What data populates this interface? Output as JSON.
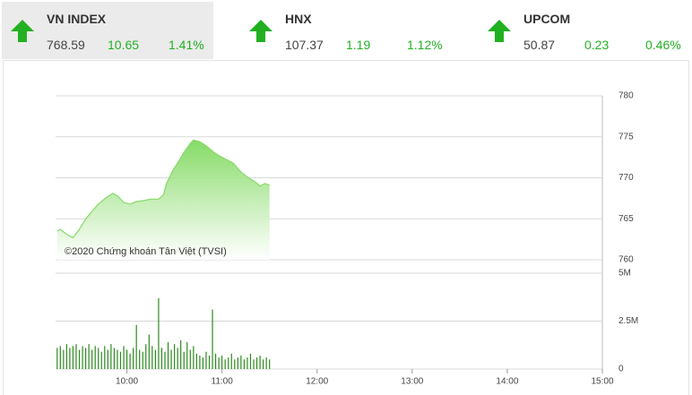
{
  "indices": [
    {
      "name": "VN INDEX",
      "value": "768.59",
      "change": "10.65",
      "percent": "1.41%"
    },
    {
      "name": "HNX",
      "value": "107.37",
      "change": "1.19",
      "percent": "1.12%"
    },
    {
      "name": "UPCOM",
      "value": "50.87",
      "change": "0.23",
      "percent": "0.46%"
    }
  ],
  "chart_data": [
    {
      "type": "area",
      "annotation": "©2020 Chứng khoán Tân Việt (TVSI)",
      "color": "#86d96a",
      "x": [
        "09:16",
        "09:18",
        "09:22",
        "09:26",
        "09:30",
        "09:34",
        "09:38",
        "09:42",
        "09:47",
        "09:51",
        "09:54",
        "09:58",
        "10:02",
        "10:06",
        "10:10",
        "10:15",
        "10:20",
        "10:23",
        "10:25",
        "10:29",
        "10:32",
        "10:36",
        "10:40",
        "10:42",
        "10:46",
        "10:50",
        "10:55",
        "10:59",
        "11:03",
        "11:07",
        "11:12",
        "11:16",
        "11:21",
        "11:24",
        "11:27",
        "11:30"
      ],
      "values": [
        763.5,
        763.7,
        763.1,
        762.7,
        763.7,
        765.0,
        765.9,
        766.8,
        767.6,
        768.1,
        767.8,
        767.0,
        766.8,
        767.1,
        767.2,
        767.4,
        767.4,
        767.9,
        769.3,
        770.9,
        771.8,
        773.1,
        774.2,
        774.6,
        774.4,
        773.9,
        773.1,
        772.6,
        772.2,
        771.8,
        770.7,
        770.1,
        769.5,
        769.0,
        769.3,
        769.1
      ],
      "xlim": [
        "09:15",
        "15:00"
      ],
      "ylim": [
        760,
        780
      ],
      "yticks": [
        760,
        765,
        770,
        775,
        780
      ],
      "grid": true
    },
    {
      "type": "bar",
      "color": "#2d8a1f",
      "x": [
        "09:16",
        "09:18",
        "09:20",
        "09:22",
        "09:24",
        "09:26",
        "09:28",
        "09:30",
        "09:32",
        "09:34",
        "09:36",
        "09:38",
        "09:40",
        "09:42",
        "09:44",
        "09:46",
        "09:48",
        "09:50",
        "09:52",
        "09:54",
        "09:56",
        "09:58",
        "10:00",
        "10:02",
        "10:04",
        "10:06",
        "10:08",
        "10:10",
        "10:12",
        "10:14",
        "10:16",
        "10:18",
        "10:20",
        "10:22",
        "10:24",
        "10:26",
        "10:28",
        "10:30",
        "10:32",
        "10:34",
        "10:36",
        "10:38",
        "10:40",
        "10:42",
        "10:44",
        "10:46",
        "10:48",
        "10:50",
        "10:52",
        "10:54",
        "10:56",
        "10:58",
        "11:00",
        "11:02",
        "11:04",
        "11:06",
        "11:08",
        "11:10",
        "11:12",
        "11:14",
        "11:16",
        "11:18",
        "11:20",
        "11:22",
        "11:24",
        "11:26",
        "11:28",
        "11:30"
      ],
      "values": [
        1100000,
        1200000,
        1000000,
        1300000,
        1100000,
        1200000,
        1300000,
        1000000,
        1200000,
        1100000,
        1300000,
        1000000,
        1200000,
        1100000,
        900000,
        1200000,
        1000000,
        1300000,
        1100000,
        1000000,
        900000,
        1200000,
        1000000,
        800000,
        1100000,
        2300000,
        1000000,
        900000,
        1300000,
        1800000,
        1200000,
        1000000,
        3700000,
        1100000,
        900000,
        1400000,
        1000000,
        1300000,
        1100000,
        1500000,
        900000,
        1400000,
        1000000,
        1200000,
        800000,
        700000,
        600000,
        900000,
        700000,
        3100000,
        800000,
        600000,
        700000,
        500000,
        600000,
        800000,
        500000,
        600000,
        700000,
        500000,
        600000,
        800000,
        500000,
        600000,
        700000,
        500000,
        600000,
        500000
      ],
      "xlim": [
        "09:15",
        "15:00"
      ],
      "xticks": [
        "10:00",
        "11:00",
        "12:00",
        "13:00",
        "14:00",
        "15:00"
      ],
      "ylim": [
        0,
        5000000
      ],
      "yticks": [
        0,
        {
          "value": 2500000,
          "label": "2.5M"
        },
        {
          "value": 5000000,
          "label": "5M"
        }
      ],
      "grid": true
    }
  ]
}
